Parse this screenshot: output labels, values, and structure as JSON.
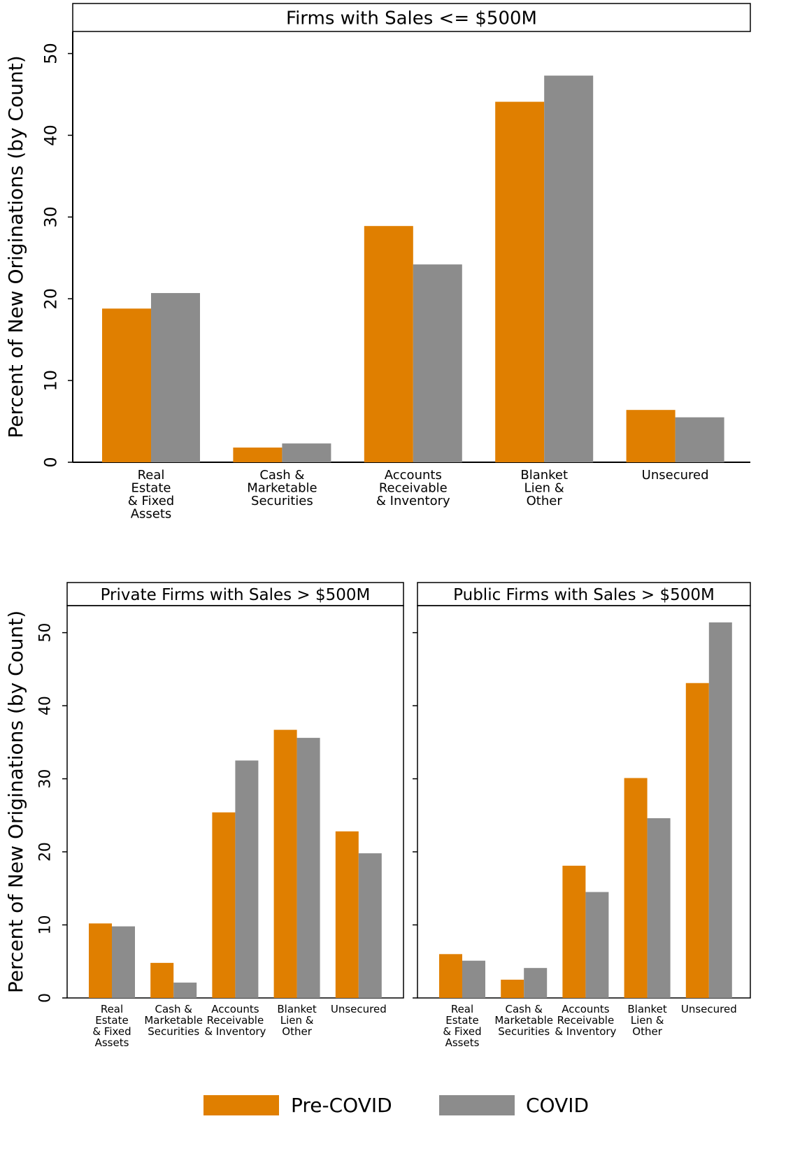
{
  "chart_data": [
    {
      "type": "bar",
      "title": "Firms with Sales <= $500M",
      "y_label": "Percent of New Originations (by Count)",
      "categories": [
        [
          "Real",
          "Estate",
          "& Fixed",
          "Assets"
        ],
        [
          "Cash &",
          "Marketable",
          "Securities"
        ],
        [
          "Accounts",
          "Receivable",
          "& Inventory"
        ],
        [
          "Blanket",
          "Lien &",
          "Other"
        ],
        [
          "Unsecured"
        ]
      ],
      "series": [
        {
          "name": "Pre-COVID",
          "color": "#e07f00",
          "values": [
            18.8,
            1.8,
            28.9,
            44.1,
            6.4
          ]
        },
        {
          "name": "COVID",
          "color": "#8c8c8c",
          "values": [
            20.7,
            2.3,
            24.2,
            47.3,
            5.5
          ]
        }
      ],
      "ylim": [
        0,
        52.7
      ],
      "yticks": [
        0,
        10,
        20,
        30,
        40,
        50
      ]
    },
    {
      "type": "bar",
      "title": "Private Firms with Sales > $500M",
      "y_label": "Percent of New Originations (by Count)",
      "categories": [
        [
          "Real",
          "Estate",
          "& Fixed",
          "Assets"
        ],
        [
          "Cash &",
          "Marketable",
          "Securities"
        ],
        [
          "Accounts",
          "Receivable",
          "& Inventory"
        ],
        [
          "Blanket",
          "Lien &",
          "Other"
        ],
        [
          "Unsecured"
        ]
      ],
      "series": [
        {
          "color": "#e07f00",
          "values": [
            10.2,
            4.8,
            25.4,
            36.7,
            22.8
          ]
        },
        {
          "color": "#8c8c8c",
          "values": [
            9.8,
            2.1,
            32.5,
            35.6,
            19.8
          ]
        }
      ],
      "ylim": [
        0,
        53.7
      ],
      "yticks": [
        0,
        10,
        20,
        30,
        40,
        50
      ]
    },
    {
      "type": "bar",
      "title": "Public Firms with Sales > $500M",
      "categories": [
        [
          "Real",
          "Estate",
          "& Fixed",
          "Assets"
        ],
        [
          "Cash &",
          "Marketable",
          "Securities"
        ],
        [
          "Accounts",
          "Receivable",
          "& Inventory"
        ],
        [
          "Blanket",
          "Lien &",
          "Other"
        ],
        [
          "Unsecured"
        ]
      ],
      "series": [
        {
          "color": "#e07f00",
          "values": [
            6.0,
            2.5,
            18.1,
            30.1,
            43.1
          ]
        },
        {
          "color": "#8c8c8c",
          "values": [
            5.1,
            4.1,
            14.5,
            24.6,
            51.4
          ]
        }
      ],
      "ylim": [
        0,
        53.7
      ],
      "yticks": [
        0,
        10,
        20,
        30,
        40,
        50
      ]
    }
  ]
}
